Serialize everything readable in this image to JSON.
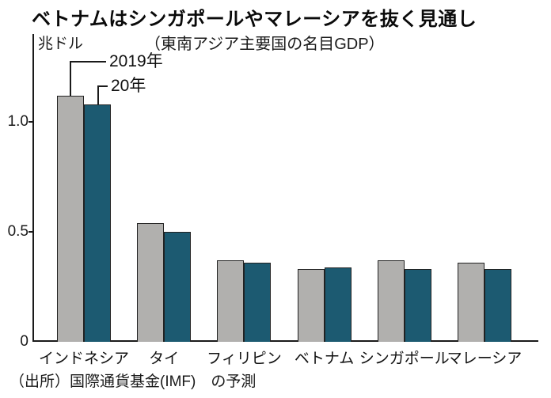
{
  "title": "ベトナムはシンガポールやマレーシアを抜く見通し",
  "subtitle": "（東南アジア主要国の名目GDP）",
  "unit_label": "兆ドル",
  "source_note": "（出所）国際通貨基金(IMF)　の予測",
  "colors": {
    "bar_2019": "#b1b0ae",
    "bar_2020": "#1c5a71",
    "axis": "#1a1a1a"
  },
  "chart_data": {
    "type": "bar",
    "title": "ベトナムはシンガポールやマレーシアを抜く見通し",
    "subtitle": "（東南アジア主要国の名目GDP）",
    "categories": [
      "インドネシア",
      "タイ",
      "フィリピン",
      "ベトナム",
      "シンガポール",
      "マレーシア"
    ],
    "series": [
      {
        "name": "2019年",
        "color_key": "bar_2019",
        "values": [
          1.12,
          0.54,
          0.37,
          0.33,
          0.37,
          0.36
        ]
      },
      {
        "name": "20年",
        "color_key": "bar_2020",
        "values": [
          1.08,
          0.5,
          0.36,
          0.34,
          0.33,
          0.33
        ]
      }
    ],
    "xlabel": "",
    "ylabel": "兆ドル",
    "ylim": [
      0,
      1.4
    ],
    "yticks": [
      0,
      0.5,
      1.0
    ],
    "ytick_labels": [
      "0",
      "0.5",
      "1.0"
    ],
    "grid": false,
    "legend_position": "callouts-above-first-group",
    "source": "（出所）国際通貨基金(IMF)　の予測"
  }
}
